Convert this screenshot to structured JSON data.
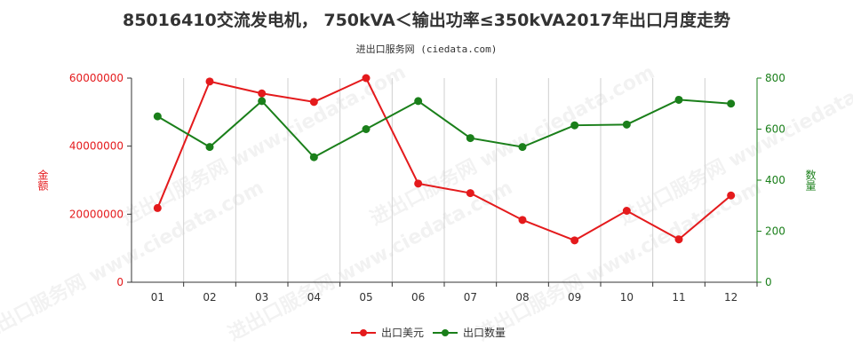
{
  "title": "85016410交流发电机， 750kVA＜输出功率≤350kVA2017年出口月度走势",
  "subtitle": "进出口服务网 (ciedata.com)",
  "watermark": "进出口服务网 www.ciedata.com",
  "colors": {
    "amount": "#e41a1c",
    "quantity": "#1a7f1a",
    "grid": "#cfcfcf",
    "axis": "#333333"
  },
  "chart_data": {
    "type": "line",
    "categories": [
      "01",
      "02",
      "03",
      "04",
      "05",
      "06",
      "07",
      "08",
      "09",
      "10",
      "11",
      "12"
    ],
    "series": [
      {
        "name": "出口美元",
        "axis": "left",
        "values": [
          21800000,
          59000000,
          55500000,
          53000000,
          60000000,
          29000000,
          26200000,
          18300000,
          12300000,
          21000000,
          12600000,
          25500000
        ]
      },
      {
        "name": "出口数量",
        "axis": "right",
        "values": [
          650,
          530,
          710,
          490,
          600,
          710,
          565,
          530,
          615,
          618,
          715,
          700
        ]
      }
    ],
    "y_left": {
      "label": "金额",
      "range": [
        0,
        60000000
      ],
      "ticks": [
        "0",
        "20000000",
        "40000000",
        "60000000"
      ]
    },
    "y_right": {
      "label": "数量",
      "range": [
        0,
        800
      ],
      "ticks": [
        "0",
        "200",
        "400",
        "600",
        "800"
      ]
    },
    "grid": "vertical",
    "legend": "bottom-center"
  }
}
